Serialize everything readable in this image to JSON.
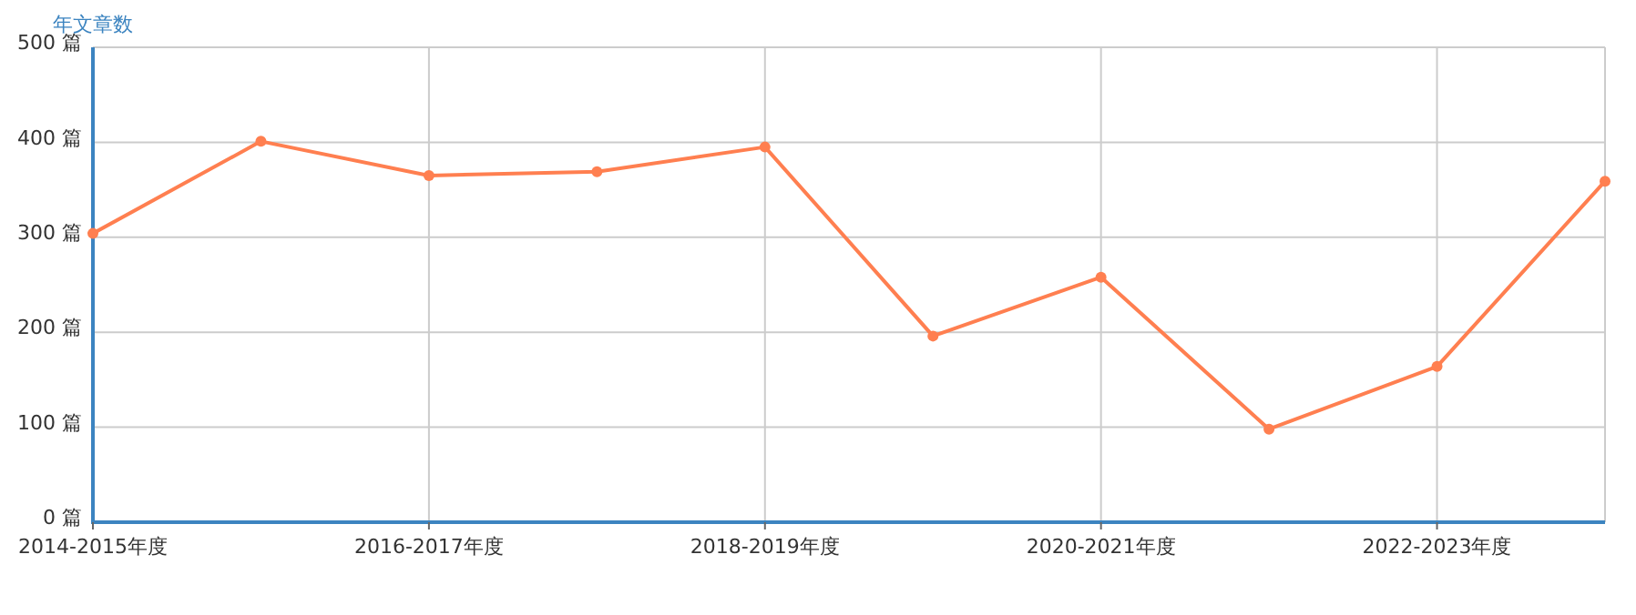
{
  "chart_data": {
    "type": "line",
    "ylabel": "年文章数",
    "categories": [
      "2014-2015年度",
      null,
      "2016-2017年度",
      null,
      "2018-2019年度",
      null,
      "2020-2021年度",
      null,
      "2022-2023年度",
      null
    ],
    "series": [
      {
        "color": "#ff7f50",
        "values": [
          304,
          401,
          365,
          369,
          395,
          196,
          258,
          98,
          164,
          359
        ]
      }
    ],
    "ylim": [
      0,
      500
    ],
    "yticks": [
      {
        "value": 0,
        "label": "0 篇"
      },
      {
        "value": 100,
        "label": "100 篇"
      },
      {
        "value": 200,
        "label": "200 篇"
      },
      {
        "value": 300,
        "label": "300 篇"
      },
      {
        "value": 400,
        "label": "400 篇"
      },
      {
        "value": 500,
        "label": "500 篇"
      }
    ],
    "grid": true,
    "marker": "circle",
    "line_style": "solid"
  }
}
